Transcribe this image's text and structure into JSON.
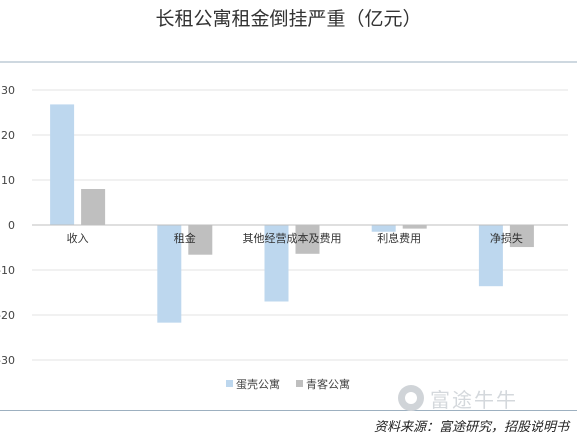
{
  "title": "长租公寓租金倒挂严重（亿元）",
  "source": "资料来源：富途研究，招股说明书",
  "watermark": "富途牛牛",
  "chart_data": {
    "type": "bar",
    "categories": [
      "收入",
      "租金",
      "其他经营成本及费用",
      "利息费用",
      "净损失"
    ],
    "series": [
      {
        "name": "蛋壳公寓",
        "color": "#bdd7ee",
        "values": [
          26.8,
          -21.7,
          -17.0,
          -1.5,
          -13.6
        ]
      },
      {
        "name": "青客公寓",
        "color": "#bfbfbf",
        "values": [
          8.0,
          -6.6,
          -6.4,
          -0.8,
          -4.9
        ]
      }
    ],
    "ylim": [
      -30,
      30
    ],
    "yticks": [
      30,
      20,
      10,
      0,
      -10,
      -20,
      -30
    ],
    "grid": true,
    "legend": "bottom"
  }
}
